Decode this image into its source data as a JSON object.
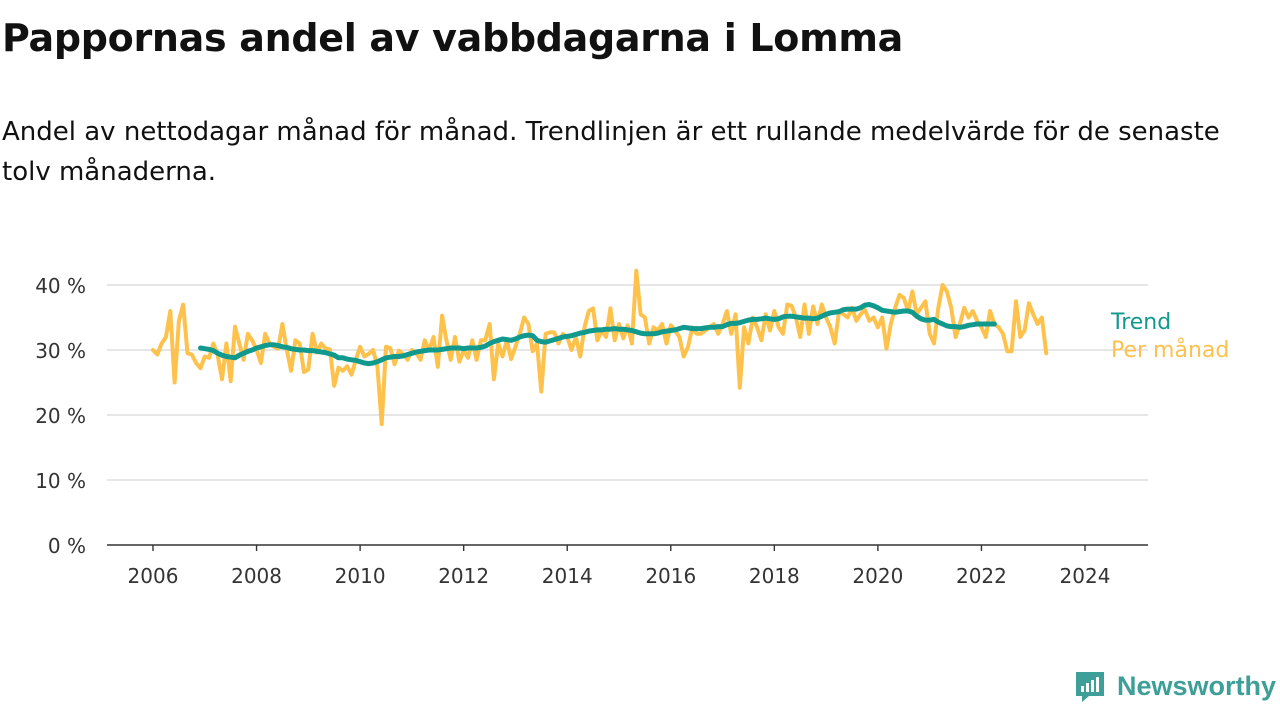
{
  "title": "Pappornas andel av vabbdagarna i Lomma",
  "subtitle": "Andel av nettodagar månad för månad. Trendlinjen är ett rullande medelvärde för de senaste tolv månaderna.",
  "brand": {
    "name": "Newsworthy",
    "icon": "newsworthy-logo-icon"
  },
  "colors": {
    "monthly": "#fec24c",
    "trend": "#11998e",
    "grid": "#d6d6d6",
    "axis": "#333333",
    "text": "#333333"
  },
  "chart_data": {
    "type": "line",
    "title": "Pappornas andel av vabbdagarna i Lomma",
    "xlabel": "",
    "ylabel": "",
    "x_ticks": [
      "2006",
      "2008",
      "2010",
      "2012",
      "2014",
      "2016",
      "2018",
      "2020",
      "2022",
      "2024"
    ],
    "y_ticks": [
      "0 %",
      "10 %",
      "20 %",
      "30 %",
      "40 %"
    ],
    "ylim": [
      0,
      40
    ],
    "xlim": [
      "2005-01",
      "2025-04"
    ],
    "grid": true,
    "legend": "end-of-line labels, right",
    "series": [
      {
        "name": "Per månad",
        "x_start": "2006-01",
        "frequency": "monthly",
        "values": [
          30.0,
          29.3,
          31.0,
          32.0,
          36.0,
          25.0,
          34.5,
          37.0,
          29.5,
          29.3,
          28.0,
          27.2,
          29.0,
          28.8,
          31.0,
          29.2,
          25.5,
          31.0,
          25.2,
          33.6,
          31.0,
          28.5,
          32.5,
          31.5,
          30.0,
          28.0,
          32.5,
          31.0,
          30.5,
          30.2,
          34.0,
          30.0,
          26.8,
          31.5,
          31.0,
          26.6,
          27.0,
          32.5,
          29.6,
          31.0,
          30.2,
          30.1,
          24.5,
          27.3,
          26.8,
          27.5,
          26.2,
          28.5,
          30.5,
          29.0,
          29.4,
          30.0,
          27.5,
          18.6,
          30.5,
          30.3,
          27.8,
          29.9,
          29.3,
          28.5,
          30.0,
          29.5,
          28.5,
          31.5,
          30.0,
          32.0,
          27.4,
          35.3,
          31.5,
          28.5,
          32.0,
          28.2,
          30.0,
          28.8,
          31.5,
          28.5,
          31.5,
          31.5,
          34.0,
          25.5,
          31.0,
          29.0,
          31.5,
          28.6,
          30.5,
          32.5,
          35.0,
          34.0,
          29.8,
          31.0,
          23.6,
          32.5,
          32.7,
          32.7,
          31.0,
          32.5,
          32.0,
          30.0,
          32.0,
          29.0,
          33.5,
          36.0,
          36.4,
          31.5,
          33.0,
          32.0,
          36.4,
          31.5,
          34.0,
          31.8,
          33.8,
          31.0,
          42.2,
          35.5,
          35.0,
          31.0,
          33.5,
          33.0,
          34.0,
          31.0,
          33.8,
          33.0,
          32.0,
          29.0,
          30.5,
          33.5,
          32.5,
          32.5,
          33.0,
          33.5,
          34.0,
          32.5,
          34.0,
          36.0,
          32.5,
          35.5,
          24.2,
          33.5,
          31.0,
          35.0,
          33.5,
          31.5,
          35.5,
          33.0,
          36.0,
          33.5,
          32.5,
          37.0,
          36.8,
          35.0,
          32.0,
          37.0,
          32.5,
          36.7,
          34.0,
          37.0,
          35.0,
          33.5,
          31.0,
          36.0,
          35.5,
          35.0,
          36.5,
          34.5,
          35.5,
          36.2,
          34.5,
          35.0,
          33.5,
          35.0,
          30.2,
          34.0,
          36.5,
          38.5,
          38.0,
          36.0,
          39.0,
          35.5,
          36.5,
          37.5,
          32.5,
          31.0,
          36.5,
          40.0,
          39.0,
          36.5,
          32.0,
          34.0,
          36.5,
          35.0,
          36.0,
          34.5,
          33.5,
          32.0,
          36.0,
          34.0,
          33.5,
          32.5,
          29.8,
          29.8,
          37.5,
          32.0,
          33.0,
          37.2,
          35.5,
          34.0,
          35.0,
          29.5
        ]
      },
      {
        "name": "Trend",
        "x_start": "2006-12",
        "frequency": "monthly",
        "values": [
          30.3,
          30.2,
          30.1,
          29.9,
          29.5,
          29.2,
          29.0,
          28.9,
          28.8,
          29.2,
          29.5,
          29.8,
          30.0,
          30.3,
          30.5,
          30.7,
          30.8,
          30.8,
          30.7,
          30.5,
          30.4,
          30.2,
          30.1,
          30.0,
          30.0,
          29.9,
          29.9,
          29.8,
          29.7,
          29.6,
          29.4,
          29.2,
          28.8,
          28.8,
          28.6,
          28.5,
          28.4,
          28.2,
          28.0,
          27.9,
          28.0,
          28.2,
          28.5,
          28.8,
          28.9,
          29.0,
          29.0,
          29.1,
          29.3,
          29.5,
          29.7,
          29.8,
          29.9,
          30.0,
          30.0,
          30.0,
          30.1,
          30.2,
          30.3,
          30.3,
          30.3,
          30.2,
          30.3,
          30.3,
          30.3,
          30.4,
          30.6,
          31.0,
          31.3,
          31.5,
          31.7,
          31.6,
          31.5,
          31.7,
          32.0,
          32.2,
          32.3,
          32.2,
          31.5,
          31.3,
          31.2,
          31.4,
          31.6,
          31.8,
          32.0,
          32.1,
          32.2,
          32.4,
          32.6,
          32.7,
          32.9,
          33.0,
          33.1,
          33.1,
          33.2,
          33.2,
          33.3,
          33.2,
          33.2,
          33.1,
          33.0,
          32.8,
          32.6,
          32.5,
          32.5,
          32.5,
          32.6,
          32.8,
          32.9,
          33.0,
          33.1,
          33.3,
          33.5,
          33.4,
          33.3,
          33.3,
          33.3,
          33.4,
          33.5,
          33.5,
          33.6,
          33.6,
          33.9,
          34.1,
          34.1,
          34.2,
          34.4,
          34.6,
          34.7,
          34.7,
          34.8,
          34.9,
          34.8,
          34.7,
          34.8,
          35.1,
          35.2,
          35.2,
          35.1,
          35.0,
          34.9,
          34.9,
          34.8,
          34.9,
          35.2,
          35.5,
          35.7,
          35.8,
          35.9,
          36.2,
          36.3,
          36.3,
          36.3,
          36.5,
          36.9,
          37.0,
          36.8,
          36.5,
          36.1,
          36.0,
          35.9,
          35.8,
          35.9,
          36.0,
          36.0,
          35.8,
          35.2,
          34.8,
          34.6,
          34.6,
          34.7,
          34.3,
          34.0,
          33.7,
          33.6,
          33.6,
          33.5,
          33.6,
          33.8,
          33.9,
          34.0,
          34.0,
          34.0,
          34.0,
          34.0
        ]
      }
    ]
  }
}
